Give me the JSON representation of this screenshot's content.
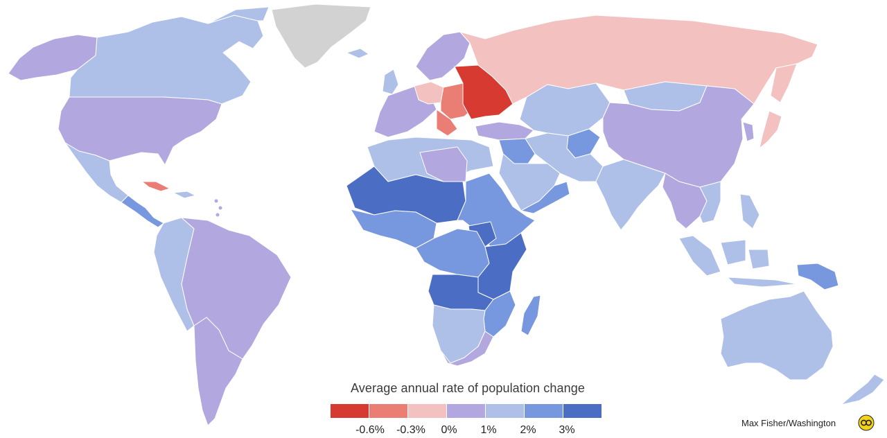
{
  "legend": {
    "title": "Average annual rate of population change",
    "colors": [
      "#d73a31",
      "#ea7d74",
      "#f3c2c0",
      "#b2a7de",
      "#aec0e8",
      "#7797de",
      "#4c6dc4"
    ],
    "ticks": [
      "-0.6%",
      "-0.3%",
      "0%",
      "1%",
      "2%",
      "3%"
    ]
  },
  "credit": {
    "text": "Max Fisher/Washington",
    "logo": "washington-post-logo-icon"
  },
  "map_colors": {
    "no_data": "#d2d2d2",
    "strong_decline": "#d73a31",
    "decline": "#ea7d74",
    "slight_decline": "#f3c2c0",
    "low_growth": "#b2a7de",
    "moderate_growth": "#aec0e8",
    "high_growth": "#7797de",
    "very_high_growth": "#4c6dc4"
  }
}
